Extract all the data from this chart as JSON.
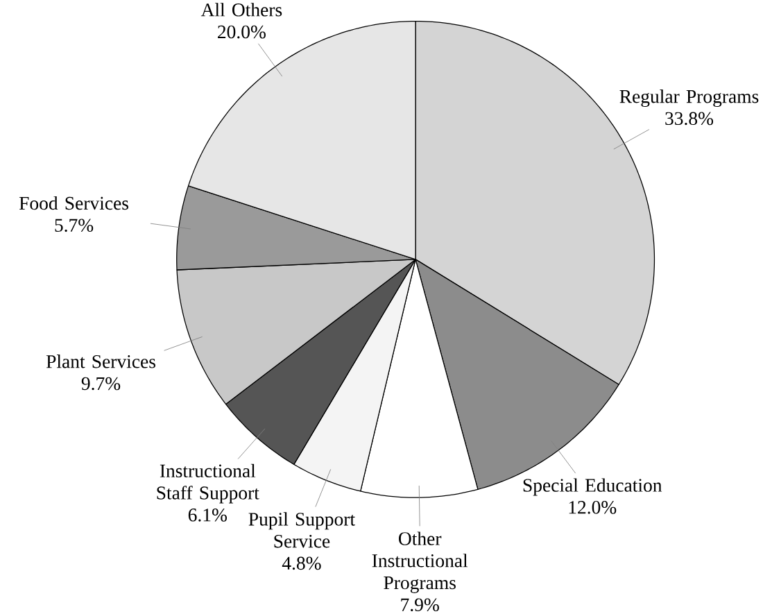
{
  "chart_data": {
    "type": "pie",
    "categories": [
      "Regular Programs",
      "Special Education",
      "Other Instructional Programs",
      "Pupil Support Service",
      "Instructional Staff Support",
      "Plant Services",
      "Food Services",
      "All Others"
    ],
    "values": [
      33.8,
      12.0,
      7.9,
      4.8,
      6.1,
      9.7,
      5.7,
      20.0
    ],
    "value_labels": [
      "33.8%",
      "12.0%",
      "7.9%",
      "4.8%",
      "6.1%",
      "9.7%",
      "5.7%",
      "20.0%"
    ],
    "colors": [
      "#d4d4d4",
      "#8c8c8c",
      "#ffffff",
      "#f4f4f4",
      "#555555",
      "#c8c8c8",
      "#9a9a9a",
      "#e6e6e6"
    ]
  }
}
